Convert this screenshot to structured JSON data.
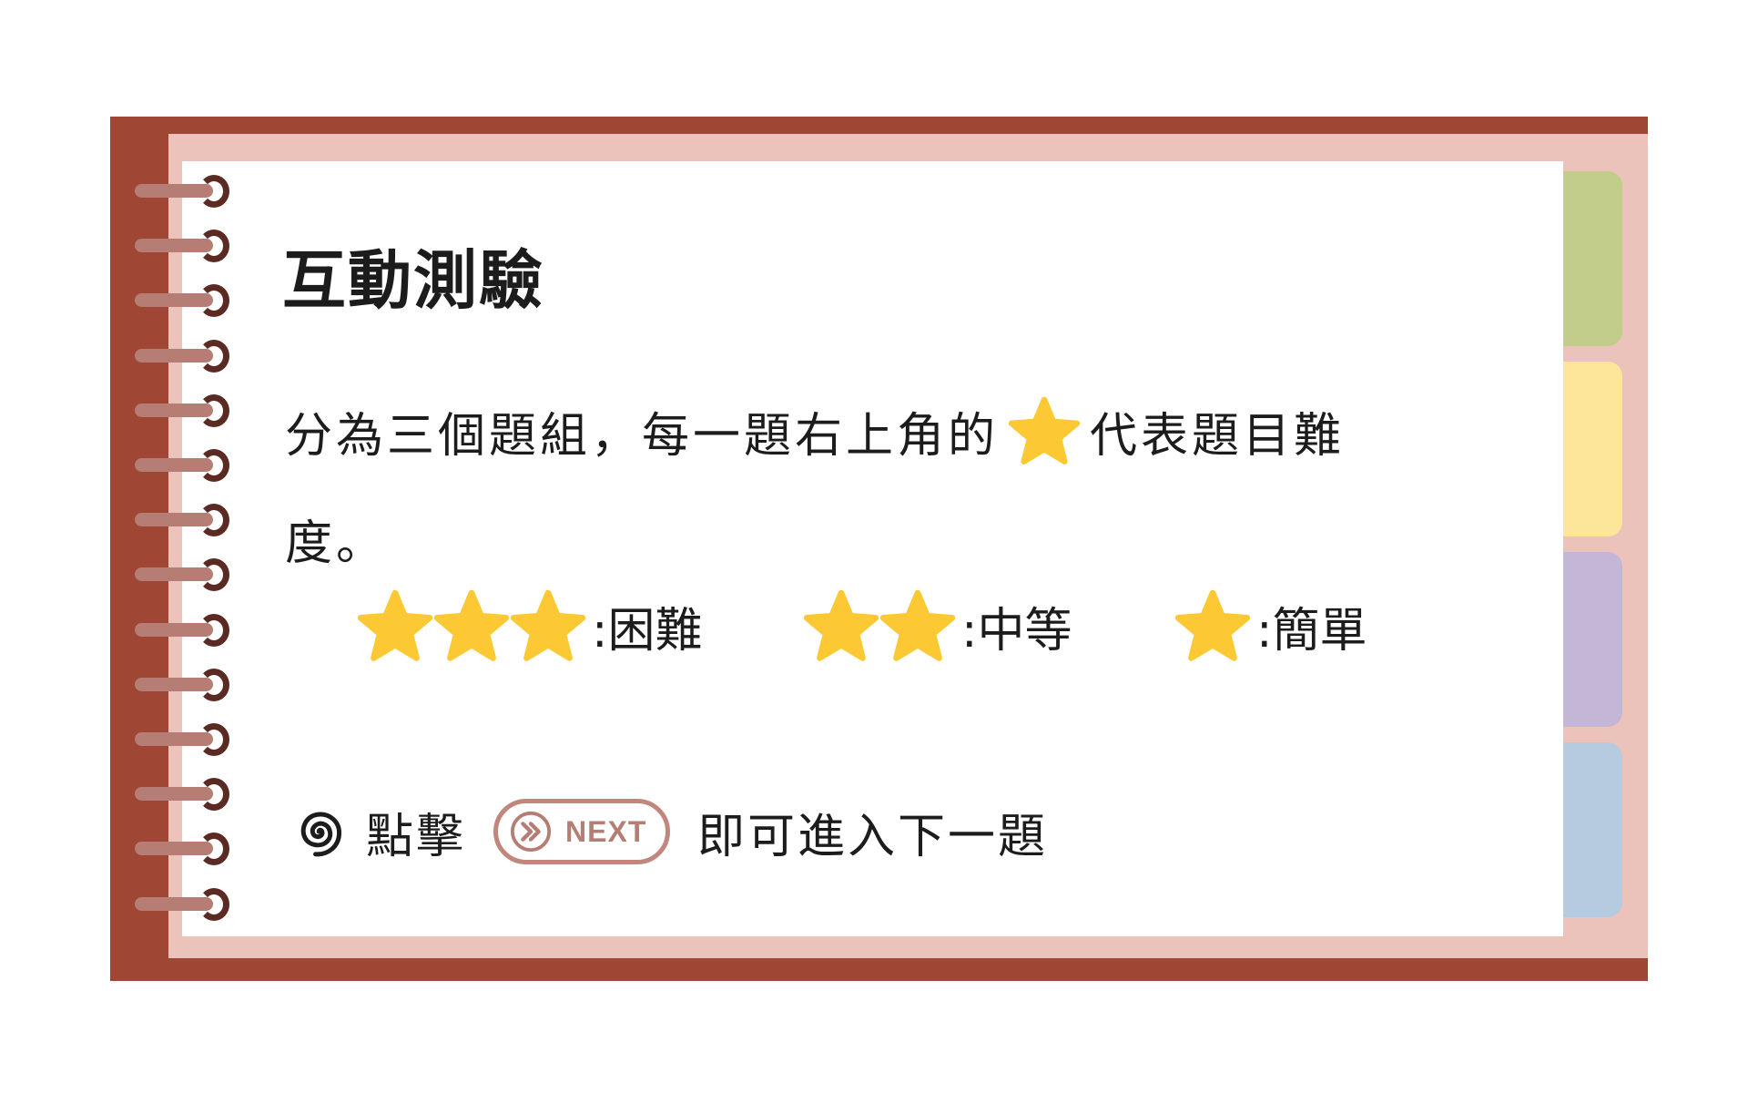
{
  "title": "互動測驗",
  "description": {
    "line1_before": "分為三個題組，每一題右上角的",
    "line1_after": "代表題目難",
    "line2": "度。"
  },
  "legend": {
    "hard": {
      "stars": 3,
      "label": ":困難"
    },
    "medium": {
      "stars": 2,
      "label": ":中等"
    },
    "easy": {
      "stars": 1,
      "label": ":簡單"
    }
  },
  "instruction": {
    "before": "點擊",
    "next_button_label": "NEXT",
    "after": "即可進入下一題"
  },
  "colors": {
    "frame": "#a04634",
    "inner_frame": "#ebc3ba",
    "star": "#fcc934",
    "tab_green": "#c2cc8b",
    "tab_yellow": "#fde699",
    "tab_purple": "#c3b6d6",
    "tab_blue": "#b6cbdf",
    "next_button": "#c1877d"
  },
  "icons": [
    "star-icon",
    "spiral-icon",
    "double-chevron-right-icon",
    "binder-ring-icon"
  ]
}
